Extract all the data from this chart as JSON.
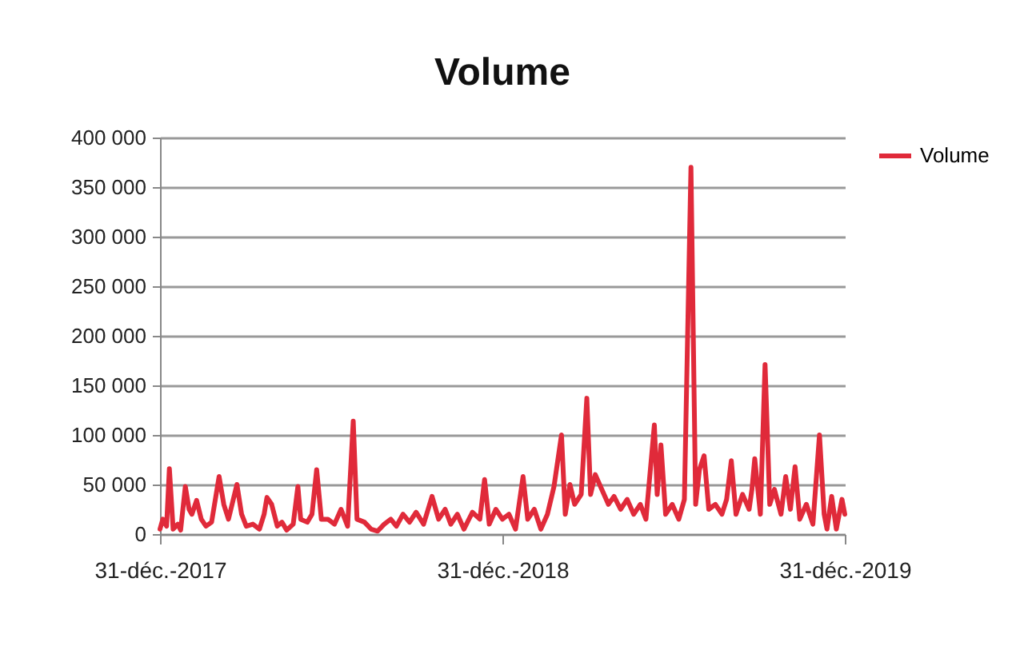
{
  "chart_data": {
    "type": "line",
    "title": "Volume",
    "x": [
      "2017-12-31",
      "2018-01-03",
      "2018-01-07",
      "2018-01-10",
      "2018-01-14",
      "2018-01-19",
      "2018-01-22",
      "2018-01-27",
      "2018-01-31",
      "2018-02-03",
      "2018-02-08",
      "2018-02-13",
      "2018-02-18",
      "2018-02-24",
      "2018-03-04",
      "2018-03-09",
      "2018-03-14",
      "2018-03-23",
      "2018-03-28",
      "2018-04-02",
      "2018-04-09",
      "2018-04-16",
      "2018-04-21",
      "2018-04-24",
      "2018-04-29",
      "2018-05-05",
      "2018-05-10",
      "2018-05-15",
      "2018-05-22",
      "2018-05-27",
      "2018-05-30",
      "2018-06-06",
      "2018-06-11",
      "2018-06-16",
      "2018-06-21",
      "2018-06-28",
      "2018-07-05",
      "2018-07-12",
      "2018-07-19",
      "2018-07-25",
      "2018-07-29",
      "2018-08-06",
      "2018-08-13",
      "2018-08-20",
      "2018-08-27",
      "2018-09-03",
      "2018-09-09",
      "2018-09-16",
      "2018-09-23",
      "2018-09-30",
      "2018-10-08",
      "2018-10-17",
      "2018-10-24",
      "2018-10-31",
      "2018-11-06",
      "2018-11-13",
      "2018-11-20",
      "2018-11-29",
      "2018-12-07",
      "2018-12-12",
      "2018-12-17",
      "2018-12-24",
      "2018-12-31",
      "2019-01-07",
      "2019-01-14",
      "2019-01-22",
      "2019-01-27",
      "2019-02-03",
      "2019-02-10",
      "2019-02-17",
      "2019-02-24",
      "2019-03-04",
      "2019-03-08",
      "2019-03-13",
      "2019-03-18",
      "2019-03-25",
      "2019-03-31",
      "2019-04-04",
      "2019-04-09",
      "2019-04-16",
      "2019-04-23",
      "2019-04-29",
      "2019-05-06",
      "2019-05-13",
      "2019-05-20",
      "2019-05-27",
      "2019-06-02",
      "2019-06-11",
      "2019-06-14",
      "2019-06-18",
      "2019-06-23",
      "2019-06-30",
      "2019-07-07",
      "2019-07-13",
      "2019-07-20",
      "2019-07-25",
      "2019-07-29",
      "2019-08-03",
      "2019-08-08",
      "2019-08-15",
      "2019-08-22",
      "2019-08-27",
      "2019-09-01",
      "2019-09-06",
      "2019-09-13",
      "2019-09-20",
      "2019-09-23",
      "2019-09-26",
      "2019-10-02",
      "2019-10-07",
      "2019-10-12",
      "2019-10-17",
      "2019-10-24",
      "2019-10-29",
      "2019-11-03",
      "2019-11-08",
      "2019-11-13",
      "2019-11-20",
      "2019-11-27",
      "2019-12-04",
      "2019-12-09",
      "2019-12-12",
      "2019-12-17",
      "2019-12-22",
      "2019-12-28",
      "2019-12-31"
    ],
    "series": [
      {
        "name": "Volume",
        "color": "#e02a3a",
        "values": [
          5000,
          15000,
          8000,
          66000,
          5000,
          10000,
          4000,
          48000,
          25000,
          20000,
          34000,
          15000,
          8000,
          12000,
          58000,
          30000,
          15000,
          50000,
          20000,
          8000,
          10000,
          5000,
          20000,
          37000,
          30000,
          8000,
          12000,
          4000,
          10000,
          48000,
          15000,
          12000,
          20000,
          65000,
          15000,
          15000,
          10000,
          25000,
          8000,
          114000,
          15000,
          12000,
          5000,
          3000,
          10000,
          15000,
          8000,
          20000,
          12000,
          22000,
          10000,
          38000,
          15000,
          25000,
          10000,
          20000,
          5000,
          22000,
          15000,
          55000,
          10000,
          25000,
          15000,
          20000,
          5000,
          58000,
          15000,
          25000,
          5000,
          20000,
          48000,
          100000,
          20000,
          50000,
          30000,
          40000,
          137000,
          40000,
          60000,
          45000,
          30000,
          38000,
          25000,
          35000,
          20000,
          30000,
          15000,
          110000,
          40000,
          90000,
          20000,
          30000,
          15000,
          35000,
          370000,
          30000,
          65000,
          79000,
          25000,
          30000,
          20000,
          35000,
          74000,
          20000,
          40000,
          25000,
          45000,
          76000,
          20000,
          171000,
          30000,
          45000,
          20000,
          58000,
          25000,
          68000,
          15000,
          30000,
          10000,
          100000,
          20000,
          5000,
          38000,
          5000,
          35000,
          20000
        ]
      }
    ],
    "xlim": [
      "2017-12-31",
      "2019-12-31"
    ],
    "xticks": [
      {
        "value": "2017-12-31",
        "label": "31-déc.-2017"
      },
      {
        "value": "2018-12-31",
        "label": "31-déc.-2018"
      },
      {
        "value": "2019-12-31",
        "label": "31-déc.-2019"
      }
    ],
    "ylim": [
      0,
      400000
    ],
    "yticks": [
      {
        "value": 0,
        "label": "0"
      },
      {
        "value": 50000,
        "label": "50 000"
      },
      {
        "value": 100000,
        "label": "100 000"
      },
      {
        "value": 150000,
        "label": "150 000"
      },
      {
        "value": 200000,
        "label": "200 000"
      },
      {
        "value": 250000,
        "label": "250 000"
      },
      {
        "value": 300000,
        "label": "300 000"
      },
      {
        "value": 350000,
        "label": "350 000"
      },
      {
        "value": 400000,
        "label": "400 000"
      }
    ],
    "grid": "y",
    "legend": "right",
    "marker": "none",
    "line_style": "solid"
  }
}
